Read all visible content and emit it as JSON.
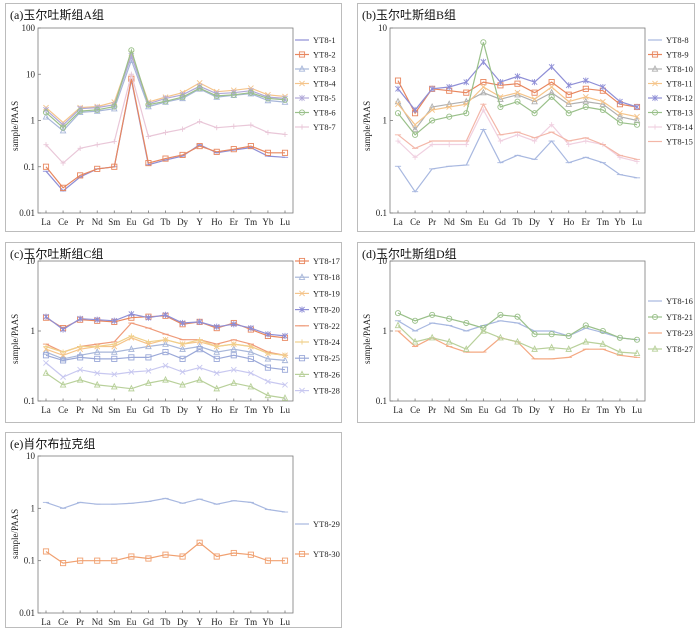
{
  "x_categories": [
    "La",
    "Ce",
    "Pr",
    "Nd",
    "Sm",
    "Eu",
    "Gd",
    "Tb",
    "Dy",
    "Y",
    "Ho",
    "Er",
    "Tm",
    "Yb",
    "Lu"
  ],
  "chart_data": [
    {
      "type": "line",
      "title": "(a)玉尔吐斯组A组",
      "ylabel": "sample/PAAS",
      "yscale": "log",
      "ylim": [
        0.01,
        100
      ],
      "yticks": [
        "0.01",
        "0.1",
        "1",
        "10",
        "100"
      ],
      "legend_position": "right",
      "series": [
        {
          "name": "YT8-1",
          "color": "#8e8ed6",
          "marker": "dash",
          "values": [
            0.08,
            0.03,
            0.06,
            0.09,
            0.1,
            7.5,
            0.11,
            0.14,
            0.17,
            0.3,
            0.2,
            0.23,
            0.26,
            0.17,
            0.16
          ]
        },
        {
          "name": "YT8-2",
          "color": "#e8875f",
          "marker": "square",
          "values": [
            0.1,
            0.035,
            0.065,
            0.09,
            0.1,
            8,
            0.12,
            0.15,
            0.18,
            0.28,
            0.21,
            0.24,
            0.28,
            0.2,
            0.2
          ]
        },
        {
          "name": "YT8-3",
          "color": "#a7b6d9",
          "marker": "triangle",
          "values": [
            1.2,
            0.6,
            1.5,
            1.6,
            1.8,
            20,
            2.0,
            2.5,
            3.0,
            4.8,
            3.2,
            3.5,
            3.8,
            2.7,
            2.5
          ]
        },
        {
          "name": "YT8-4",
          "color": "#f5c48a",
          "marker": "x",
          "values": [
            1.9,
            0.9,
            1.9,
            2.0,
            2.5,
            28,
            2.5,
            3.2,
            4.0,
            6.5,
            4.2,
            4.5,
            5.0,
            3.6,
            3.3
          ]
        },
        {
          "name": "YT8-5",
          "color": "#b0a8d8",
          "marker": "star",
          "values": [
            1.7,
            0.8,
            1.8,
            1.9,
            2.2,
            25,
            2.3,
            3.0,
            3.6,
            5.5,
            3.8,
            4.0,
            4.4,
            3.2,
            3.0
          ]
        },
        {
          "name": "YT8-6",
          "color": "#9ac08a",
          "marker": "circle",
          "values": [
            1.5,
            0.7,
            1.6,
            1.7,
            2.0,
            33,
            2.2,
            2.6,
            3.2,
            5.0,
            3.4,
            3.6,
            4.0,
            3.0,
            2.8
          ]
        },
        {
          "name": "YT8-7",
          "color": "#e9c7d8",
          "marker": "plus",
          "values": [
            0.3,
            0.12,
            0.25,
            0.3,
            0.35,
            10,
            0.45,
            0.55,
            0.65,
            0.95,
            0.7,
            0.75,
            0.8,
            0.55,
            0.5
          ]
        }
      ]
    },
    {
      "type": "line",
      "title": "(b)玉尔吐斯组B组",
      "ylabel": "sample/PAAS",
      "yscale": "log",
      "ylim": [
        0.1,
        10
      ],
      "yticks": [
        "0.1",
        "1",
        "10"
      ],
      "legend_position": "right",
      "series": [
        {
          "name": "YT8-8",
          "color": "#a8b8e0",
          "marker": "dash",
          "values": [
            0.32,
            0.17,
            0.3,
            0.32,
            0.33,
            0.8,
            0.35,
            0.42,
            0.38,
            0.6,
            0.35,
            0.4,
            0.35,
            0.26,
            0.24
          ]
        },
        {
          "name": "YT8-9",
          "color": "#e8875f",
          "marker": "square",
          "values": [
            2.7,
            1.2,
            2.2,
            2.1,
            2.0,
            2.6,
            2.4,
            2.5,
            2.0,
            2.6,
            1.9,
            2.2,
            2.1,
            1.5,
            1.4
          ]
        },
        {
          "name": "YT8-10",
          "color": "#b0b0b0",
          "marker": "triangle",
          "values": [
            1.6,
            0.8,
            1.4,
            1.5,
            1.6,
            2.0,
            1.7,
            1.9,
            1.6,
            2.0,
            1.5,
            1.6,
            1.5,
            1.1,
            1.0
          ]
        },
        {
          "name": "YT8-11",
          "color": "#f5c48a",
          "marker": "x",
          "values": [
            1.5,
            0.9,
            1.3,
            1.4,
            1.5,
            2.3,
            1.8,
            2.0,
            1.7,
            2.3,
            1.6,
            1.8,
            1.6,
            1.2,
            1.1
          ]
        },
        {
          "name": "YT8-12",
          "color": "#8e8ed6",
          "marker": "star",
          "values": [
            2.2,
            1.3,
            2.2,
            2.3,
            2.6,
            4.3,
            2.6,
            3.0,
            2.6,
            3.8,
            2.4,
            2.7,
            2.3,
            1.6,
            1.4
          ]
        },
        {
          "name": "YT8-13",
          "color": "#9ac08a",
          "marker": "circle",
          "values": [
            1.2,
            0.7,
            1.0,
            1.1,
            1.2,
            7.0,
            1.4,
            1.6,
            1.2,
            1.8,
            1.2,
            1.4,
            1.3,
            0.95,
            0.9
          ]
        },
        {
          "name": "YT8-14",
          "color": "#f0d0e0",
          "marker": "plus",
          "values": [
            0.6,
            0.4,
            0.55,
            0.55,
            0.55,
            1.3,
            0.6,
            0.7,
            0.6,
            0.9,
            0.55,
            0.6,
            0.55,
            0.4,
            0.36
          ]
        },
        {
          "name": "YT8-15",
          "color": "#f3b6a8",
          "marker": "dash",
          "values": [
            0.7,
            0.5,
            0.6,
            0.6,
            0.6,
            1.5,
            0.7,
            0.75,
            0.65,
            0.75,
            0.6,
            0.65,
            0.55,
            0.42,
            0.38
          ]
        }
      ]
    },
    {
      "type": "line",
      "title": "(c)玉尔吐斯组C组",
      "ylabel": "sample/PAAS",
      "yscale": "log",
      "ylim": [
        0.1,
        10
      ],
      "yticks": [
        "0.1",
        "1",
        "10"
      ],
      "legend_position": "right",
      "series": [
        {
          "name": "YT8-17",
          "color": "#e8875f",
          "marker": "square",
          "values": [
            1.55,
            1.1,
            1.45,
            1.4,
            1.35,
            1.55,
            1.6,
            1.65,
            1.25,
            1.35,
            1.1,
            1.3,
            1.05,
            0.85,
            0.8
          ]
        },
        {
          "name": "YT8-18",
          "color": "#a7b6d9",
          "marker": "triangle",
          "values": [
            0.5,
            0.4,
            0.45,
            0.5,
            0.5,
            0.55,
            0.6,
            0.65,
            0.55,
            0.6,
            0.5,
            0.55,
            0.5,
            0.4,
            0.38
          ]
        },
        {
          "name": "YT8-19",
          "color": "#f5c48a",
          "marker": "x",
          "values": [
            0.55,
            0.45,
            0.55,
            0.6,
            0.6,
            0.8,
            0.65,
            0.75,
            0.65,
            0.7,
            0.6,
            0.65,
            0.6,
            0.48,
            0.45
          ]
        },
        {
          "name": "YT8-20",
          "color": "#8e8ed6",
          "marker": "star",
          "values": [
            1.6,
            1.05,
            1.5,
            1.45,
            1.4,
            1.75,
            1.55,
            1.7,
            1.3,
            1.35,
            1.15,
            1.25,
            1.1,
            0.9,
            0.85
          ]
        },
        {
          "name": "YT8-22",
          "color": "#ef9b7a",
          "marker": "dash",
          "values": [
            0.65,
            0.5,
            0.6,
            0.65,
            0.7,
            1.3,
            1.1,
            0.9,
            0.75,
            0.75,
            0.65,
            0.75,
            0.65,
            0.5,
            0.45
          ]
        },
        {
          "name": "YT8-24",
          "color": "#f0d08a",
          "marker": "plus",
          "values": [
            0.6,
            0.5,
            0.6,
            0.6,
            0.65,
            0.85,
            0.7,
            0.75,
            0.65,
            0.75,
            0.6,
            0.65,
            0.6,
            0.48,
            0.45
          ]
        },
        {
          "name": "YT8-25",
          "color": "#9aa8d8",
          "marker": "square",
          "values": [
            0.45,
            0.38,
            0.42,
            0.4,
            0.4,
            0.42,
            0.42,
            0.5,
            0.4,
            0.55,
            0.4,
            0.45,
            0.4,
            0.3,
            0.28
          ]
        },
        {
          "name": "YT8-26",
          "color": "#b8d09a",
          "marker": "triangle",
          "values": [
            0.25,
            0.17,
            0.2,
            0.17,
            0.16,
            0.15,
            0.18,
            0.2,
            0.17,
            0.2,
            0.15,
            0.18,
            0.16,
            0.12,
            0.11
          ]
        },
        {
          "name": "YT8-28",
          "color": "#c8c8f0",
          "marker": "x",
          "values": [
            0.35,
            0.22,
            0.28,
            0.25,
            0.24,
            0.26,
            0.27,
            0.32,
            0.26,
            0.3,
            0.25,
            0.28,
            0.25,
            0.19,
            0.17
          ]
        }
      ]
    },
    {
      "type": "line",
      "title": "(d)玉尔吐斯组D组",
      "ylabel": "sample/PAAS",
      "yscale": "log",
      "ylim": [
        0.1,
        10
      ],
      "yticks": [
        "0.1",
        "1",
        "10"
      ],
      "legend_position": "right",
      "series": [
        {
          "name": "YT8-16",
          "color": "#a8b8e0",
          "marker": "dash",
          "values": [
            1.4,
            1.0,
            1.3,
            1.2,
            1.0,
            1.2,
            1.4,
            1.3,
            1.0,
            1.0,
            0.85,
            1.1,
            0.95,
            0.8,
            0.75
          ]
        },
        {
          "name": "YT8-21",
          "color": "#9ac08a",
          "marker": "circle",
          "values": [
            1.8,
            1.4,
            1.7,
            1.5,
            1.3,
            1.1,
            1.7,
            1.6,
            0.9,
            0.9,
            0.85,
            1.2,
            1.0,
            0.8,
            0.75
          ]
        },
        {
          "name": "YT8-23",
          "color": "#f4a882",
          "marker": "dash",
          "values": [
            1.0,
            0.6,
            0.8,
            0.6,
            0.5,
            0.5,
            0.8,
            0.7,
            0.4,
            0.4,
            0.42,
            0.55,
            0.55,
            0.45,
            0.42
          ]
        },
        {
          "name": "YT8-27",
          "color": "#b8d09a",
          "marker": "triangle",
          "values": [
            1.2,
            0.7,
            0.8,
            0.7,
            0.55,
            1.0,
            0.8,
            0.7,
            0.55,
            0.58,
            0.55,
            0.7,
            0.65,
            0.5,
            0.48
          ]
        }
      ]
    },
    {
      "type": "line",
      "title": "(e)肖尔布拉克组",
      "ylabel": "sample/PAAS",
      "yscale": "log",
      "ylim": [
        0.01,
        10
      ],
      "yticks": [
        "0.01",
        "0.1",
        "1",
        "10"
      ],
      "legend_position": "right",
      "series": [
        {
          "name": "YT8-29",
          "color": "#a8b8e0",
          "marker": "dash",
          "values": [
            1.3,
            1.0,
            1.3,
            1.2,
            1.2,
            1.25,
            1.35,
            1.55,
            1.25,
            1.5,
            1.2,
            1.4,
            1.3,
            0.95,
            0.85
          ]
        },
        {
          "name": "YT8-30",
          "color": "#f0a070",
          "marker": "square",
          "values": [
            0.15,
            0.09,
            0.1,
            0.1,
            0.1,
            0.12,
            0.11,
            0.13,
            0.12,
            0.22,
            0.12,
            0.14,
            0.13,
            0.1,
            0.1
          ]
        }
      ]
    }
  ]
}
